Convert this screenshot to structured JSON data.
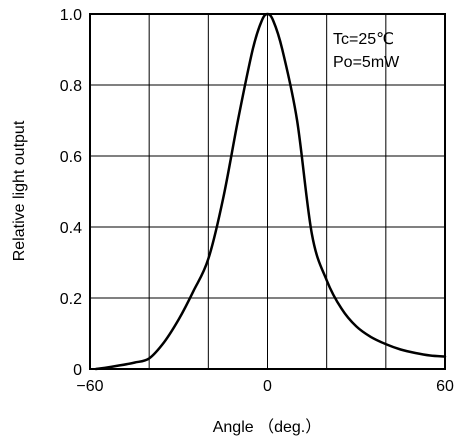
{
  "chart_data": {
    "type": "line",
    "xlabel": "Angle （deg.）",
    "ylabel": "Relative light output",
    "xlim": [
      -60,
      60
    ],
    "ylim": [
      0,
      1.0
    ],
    "xticks": [
      -60,
      0,
      60
    ],
    "xtick_labels": [
      "−60",
      "0",
      "60"
    ],
    "yticks": [
      0,
      0.2,
      0.4,
      0.6,
      0.8,
      1.0
    ],
    "ytick_labels": [
      "0",
      "0.2",
      "0.4",
      "0.6",
      "0.8",
      "1.0"
    ],
    "grid": true,
    "annotations": [
      "Tc=25℃",
      "Po=5mW"
    ],
    "line_color": "#000000",
    "series": [
      {
        "x": [
          -58,
          -55,
          -50,
          -45,
          -40,
          -35,
          -30,
          -25,
          -20,
          -15,
          -10,
          -5,
          -2,
          0,
          2,
          5,
          10,
          15,
          20,
          25,
          30,
          35,
          40,
          45,
          50,
          55,
          60
        ],
        "y": [
          0.0,
          0.003,
          0.01,
          0.018,
          0.03,
          0.075,
          0.14,
          0.22,
          0.31,
          0.48,
          0.7,
          0.9,
          0.98,
          1.0,
          0.98,
          0.9,
          0.7,
          0.38,
          0.25,
          0.17,
          0.12,
          0.09,
          0.07,
          0.055,
          0.045,
          0.038,
          0.035
        ]
      }
    ]
  }
}
